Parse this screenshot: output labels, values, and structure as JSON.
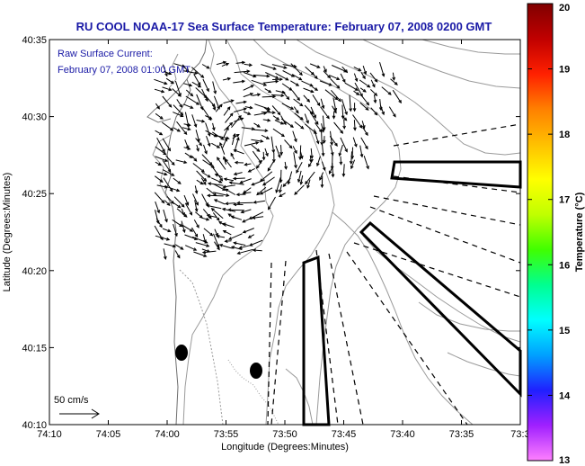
{
  "title": "RU COOL  NOAA-17  Sea Surface Temperature:  February 07, 2008 0200 GMT",
  "annotation": {
    "line1": "Raw Surface Current:",
    "line2": "February 07, 2008 01:00 GMT"
  },
  "axes": {
    "x_label": "Longitude (Degrees:Minutes)",
    "y_label": "Latitude (Degrees:Minutes)",
    "x_ticks": [
      "74:10",
      "74:05",
      "74:00",
      "73:55",
      "73:50",
      "73:45",
      "73:40",
      "73:35",
      "73:3"
    ],
    "y_ticks": [
      "40:35",
      "40:30",
      "40:25",
      "40:20",
      "40:15",
      "40:10"
    ]
  },
  "scale_label": "50 cm/s",
  "colorbar": {
    "label": "Temperature (°C)",
    "ticks": [
      "20",
      "19",
      "18",
      "17",
      "16",
      "15",
      "14",
      "13"
    ],
    "min": 13,
    "max": 20,
    "colors": [
      "#ff80ff",
      "#a020ff",
      "#2020ff",
      "#00a0ff",
      "#00ffff",
      "#00ff90",
      "#40ff00",
      "#c0ff00",
      "#ffff00",
      "#ffc000",
      "#ff8000",
      "#ff2000",
      "#c00000",
      "#800000"
    ]
  },
  "colors": {
    "title": "#1a1aa6",
    "contour": "#9a9a9a",
    "arrow": "#000000"
  }
}
